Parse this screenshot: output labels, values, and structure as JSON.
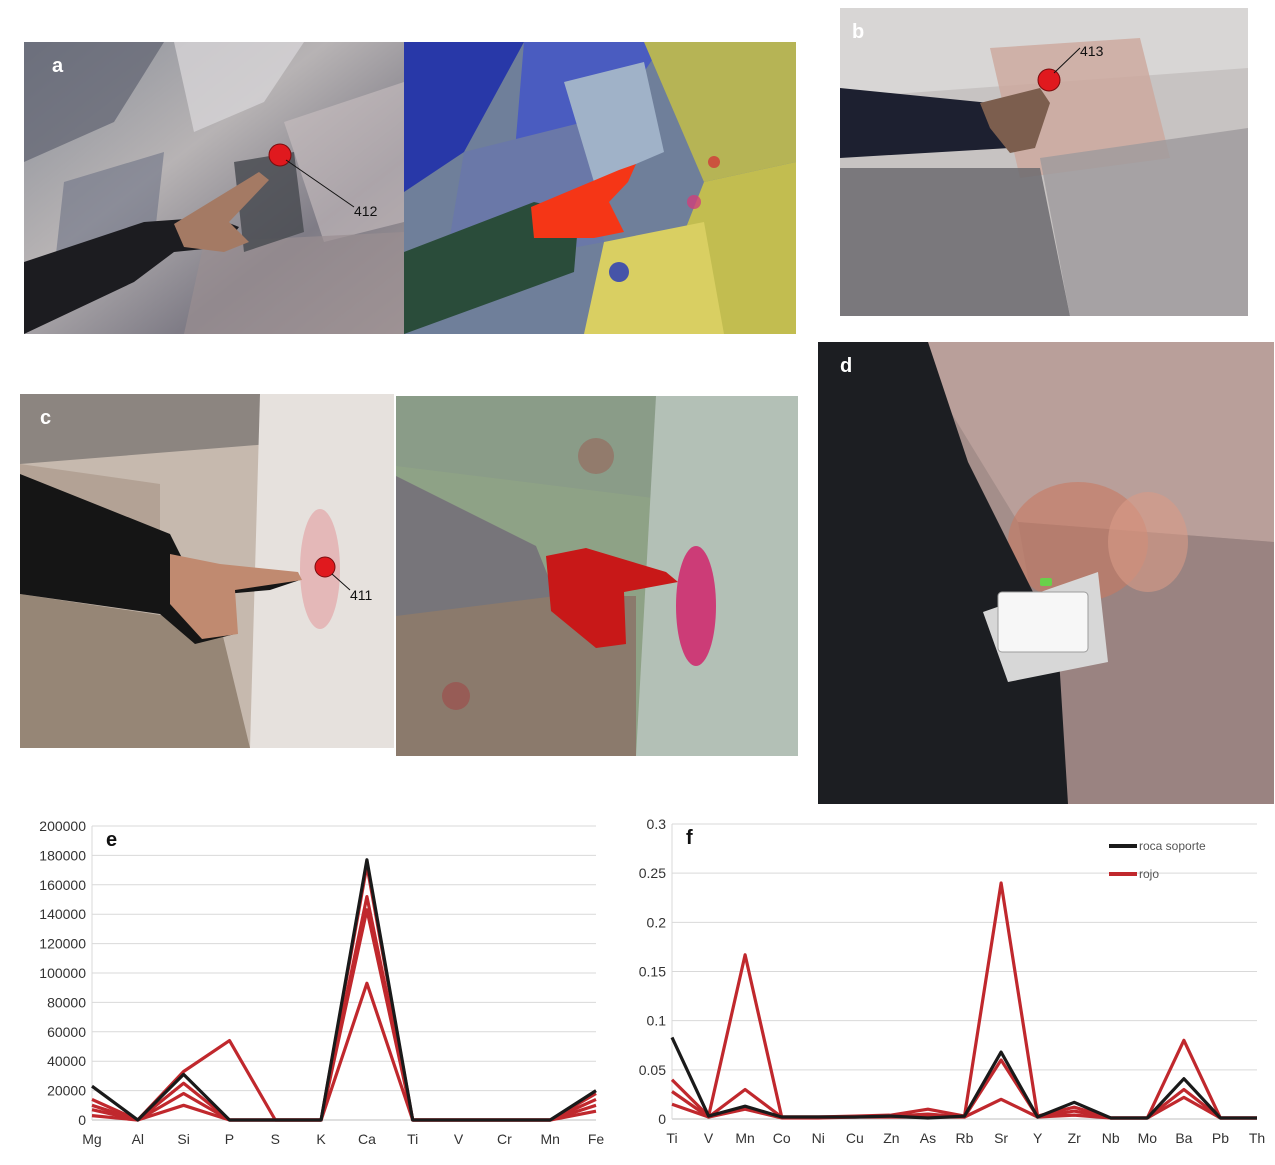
{
  "panels": {
    "a": {
      "label": "a",
      "point": "412"
    },
    "b": {
      "label": "b",
      "point": "413"
    },
    "c": {
      "label": "c",
      "point": "411"
    },
    "d": {
      "label": "d"
    }
  },
  "colors": {
    "roca_soporte": "#1a1a1a",
    "rojo": "#c0282d",
    "point_marker": "#e0191e"
  },
  "chart_data": [
    {
      "panel_label": "e",
      "type": "line",
      "categories": [
        "Mg",
        "Al",
        "Si",
        "P",
        "S",
        "K",
        "Ca",
        "Ti",
        "V",
        "Cr",
        "Mn",
        "Fe"
      ],
      "ylim": [
        0,
        200000
      ],
      "yticks": [
        "0",
        "20000",
        "40000",
        "60000",
        "80000",
        "100000",
        "120000",
        "140000",
        "160000",
        "180000",
        "200000"
      ],
      "grid": true,
      "series": [
        {
          "group": "roca soporte",
          "values": [
            23000,
            0,
            31000,
            0,
            0,
            0,
            177000,
            0,
            0,
            0,
            0,
            20000
          ]
        },
        {
          "group": "rojo",
          "values": [
            14000,
            0,
            33000,
            54000,
            0,
            0,
            173000,
            0,
            0,
            0,
            0,
            18000
          ]
        },
        {
          "group": "rojo",
          "values": [
            10000,
            0,
            25000,
            0,
            0,
            0,
            152000,
            0,
            0,
            0,
            0,
            14000
          ]
        },
        {
          "group": "rojo",
          "values": [
            7000,
            0,
            18000,
            0,
            0,
            0,
            143000,
            0,
            0,
            0,
            0,
            10000
          ]
        },
        {
          "group": "rojo",
          "values": [
            3000,
            0,
            10000,
            0,
            0,
            0,
            93000,
            0,
            0,
            0,
            0,
            6000
          ]
        }
      ]
    },
    {
      "panel_label": "f",
      "type": "line",
      "categories": [
        "Ti",
        "V",
        "Mn",
        "Co",
        "Ni",
        "Cu",
        "Zn",
        "As",
        "Rb",
        "Sr",
        "Y",
        "Zr",
        "Nb",
        "Mo",
        "Ba",
        "Pb",
        "Th"
      ],
      "ylim": [
        0,
        0.3
      ],
      "yticks": [
        "0",
        "0.05",
        "0.1",
        "0.15",
        "0.2",
        "0.25",
        "0.3"
      ],
      "grid": true,
      "legend": {
        "position": "top-right",
        "items": [
          "roca soporte",
          "rojo"
        ]
      },
      "series": [
        {
          "group": "roca soporte",
          "values": [
            0.083,
            0.003,
            0.013,
            0.002,
            0.002,
            0.002,
            0.003,
            0.001,
            0.003,
            0.068,
            0.002,
            0.017,
            0.001,
            0.001,
            0.041,
            0.001,
            0.001
          ]
        },
        {
          "group": "rojo",
          "values": [
            0.04,
            0.003,
            0.167,
            0.002,
            0.002,
            0.003,
            0.004,
            0.01,
            0.003,
            0.24,
            0.003,
            0.012,
            0.001,
            0.001,
            0.08,
            0.001,
            0.001
          ]
        },
        {
          "group": "rojo",
          "values": [
            0.028,
            0.002,
            0.03,
            0.002,
            0.002,
            0.002,
            0.003,
            0.005,
            0.002,
            0.06,
            0.002,
            0.008,
            0.001,
            0.001,
            0.03,
            0.001,
            0.001
          ]
        },
        {
          "group": "rojo",
          "values": [
            0.015,
            0.002,
            0.01,
            0.001,
            0.001,
            0.002,
            0.002,
            0.002,
            0.002,
            0.02,
            0.002,
            0.004,
            0.001,
            0.001,
            0.022,
            0.001,
            0.001
          ]
        }
      ]
    }
  ]
}
